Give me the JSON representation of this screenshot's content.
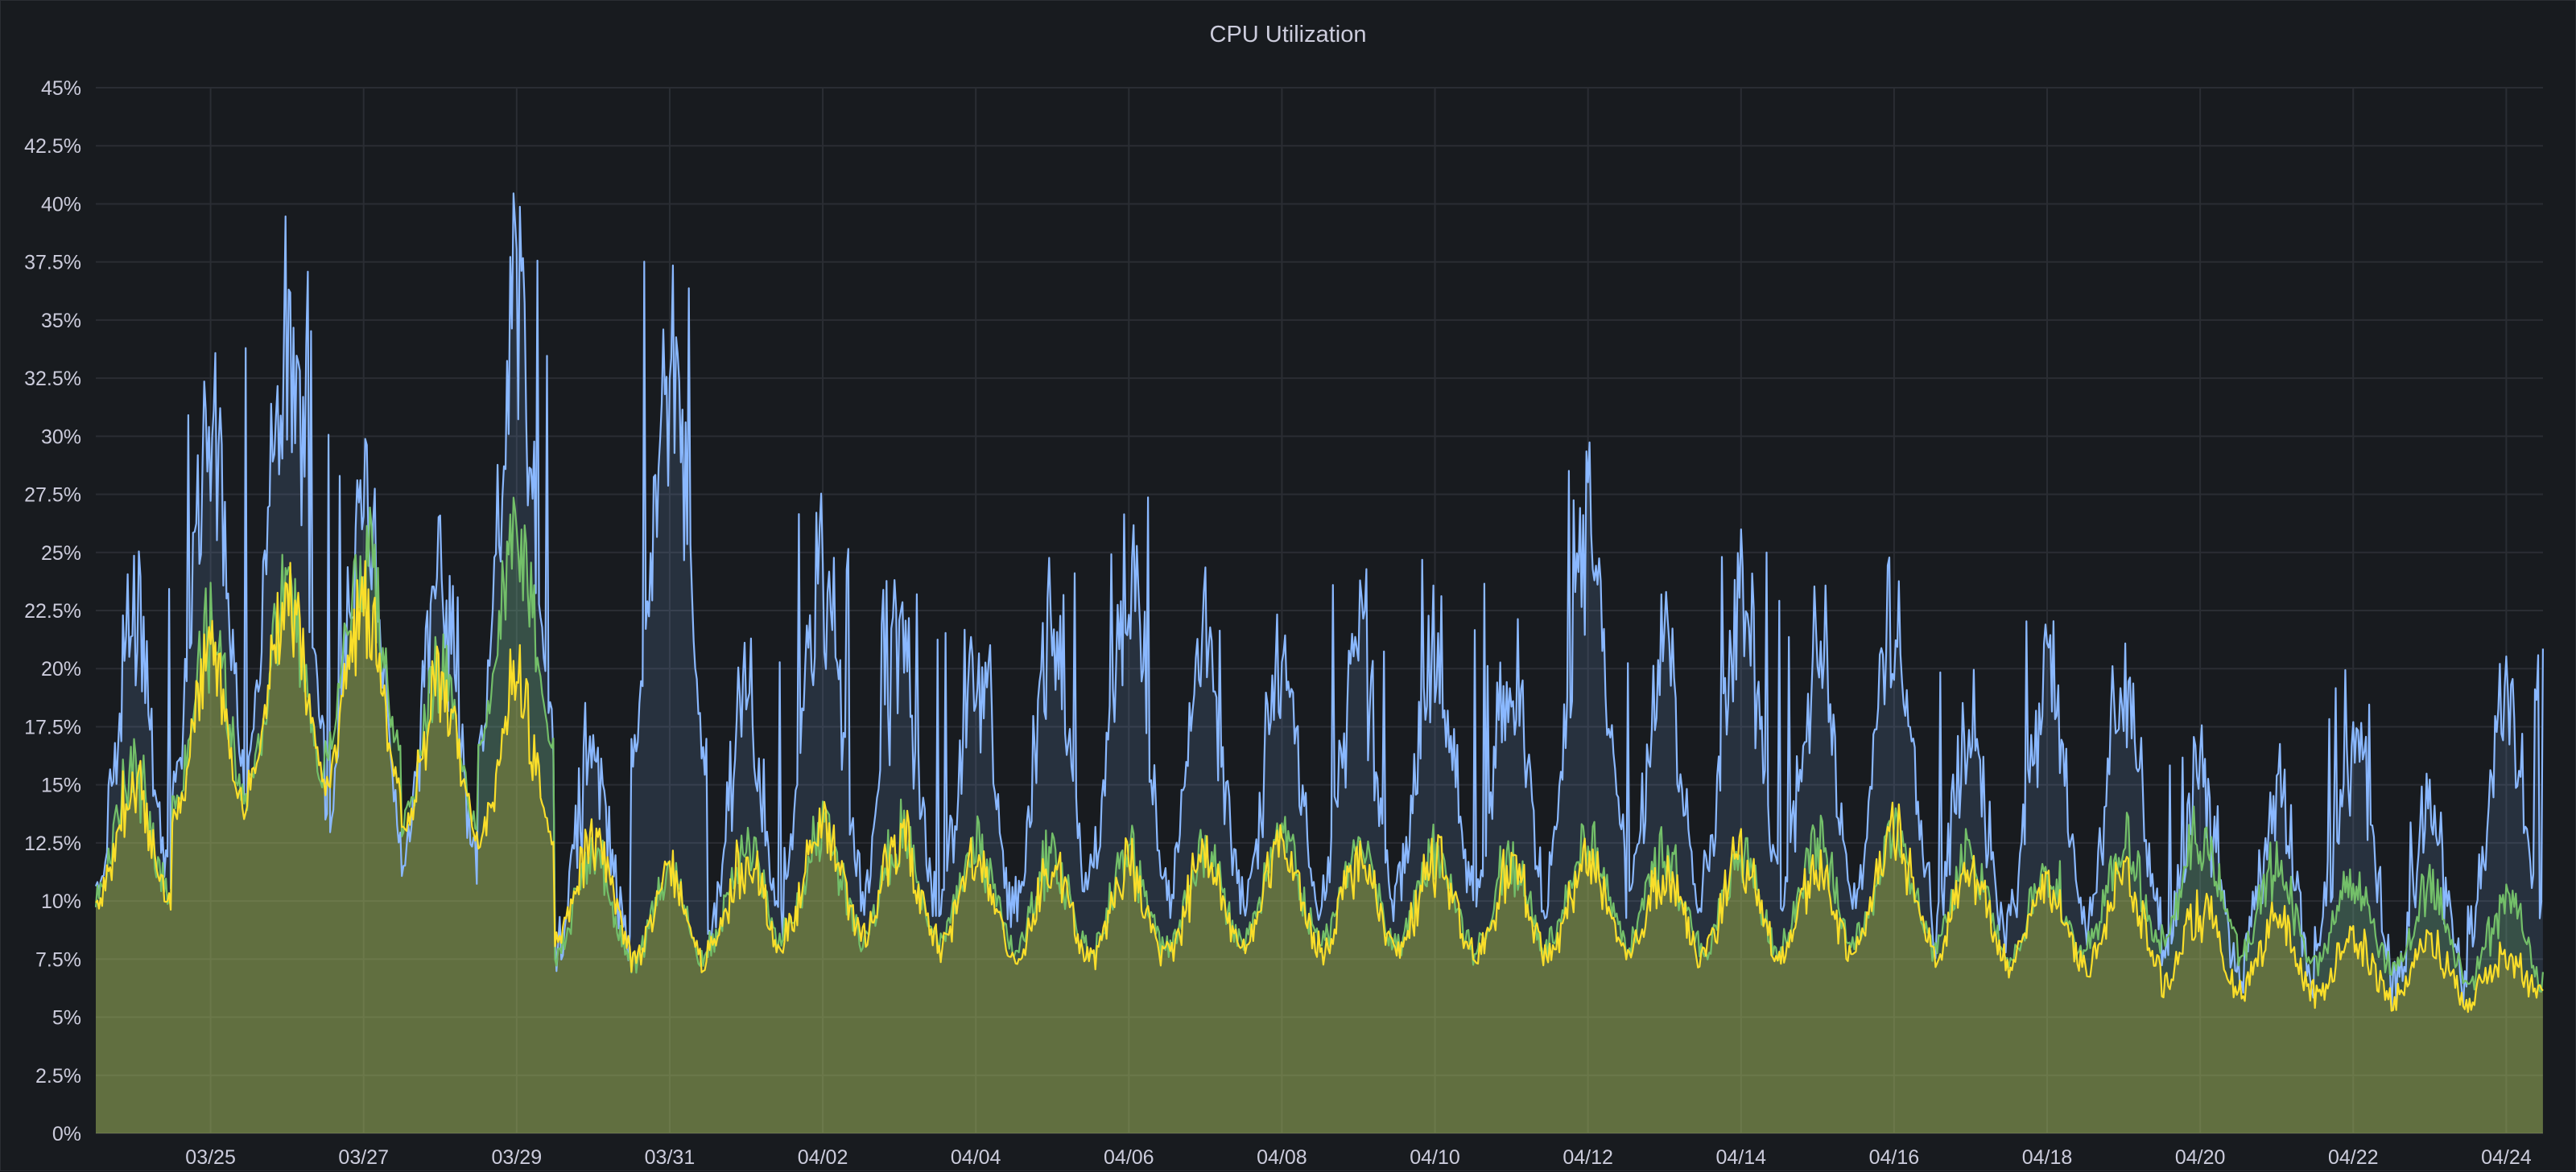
{
  "panel": {
    "title": "CPU Utilization"
  },
  "chart_data": {
    "type": "area",
    "title": "CPU Utilization",
    "xlabel": "",
    "ylabel": "",
    "ylim": [
      0,
      45
    ],
    "y_ticks": [
      "0%",
      "2.5%",
      "5%",
      "7.5%",
      "10%",
      "12.5%",
      "15%",
      "17.5%",
      "20%",
      "22.5%",
      "25%",
      "27.5%",
      "30%",
      "32.5%",
      "35%",
      "37.5%",
      "40%",
      "42.5%",
      "45%"
    ],
    "x_ticks": [
      "03/25",
      "03/27",
      "03/29",
      "03/31",
      "04/02",
      "04/04",
      "04/06",
      "04/08",
      "04/10",
      "04/12",
      "04/14",
      "04/16",
      "04/18",
      "04/20",
      "04/22",
      "04/24"
    ],
    "xlim": [
      "03/24",
      "04/24"
    ],
    "grid": true,
    "legend": "none",
    "colors": {
      "blue": "#8ab8ff",
      "green": "#73bf69",
      "yellow": "#fade2a"
    },
    "series": [
      {
        "color": "#8ab8ff",
        "x": [
          "03/24",
          "03/25",
          "03/26",
          "03/27",
          "03/28",
          "03/29",
          "03/30",
          "03/31",
          "04/01",
          "04/02",
          "04/03",
          "04/04",
          "04/05",
          "04/06",
          "04/07",
          "04/08",
          "04/09",
          "04/10",
          "04/11",
          "04/12",
          "04/13",
          "04/14",
          "04/15",
          "04/16",
          "04/17",
          "04/18",
          "04/19",
          "04/20",
          "04/21",
          "04/22",
          "04/23",
          "04/24"
        ],
        "values": [
          25,
          35,
          40.5,
          31,
          27,
          40,
          19,
          38,
          21,
          27.5,
          24,
          23,
          24,
          27.5,
          24,
          23,
          24,
          25,
          23,
          29.5,
          24,
          26.5,
          24,
          25.5,
          20,
          22.5,
          21.5,
          17.5,
          16,
          19.5,
          15,
          21
        ]
      },
      {
        "color": "#73bf69",
        "x": [
          "03/24",
          "03/25",
          "03/26",
          "03/27",
          "03/28",
          "03/29",
          "03/30",
          "03/31",
          "04/01",
          "04/02",
          "04/03",
          "04/04",
          "04/05",
          "04/06",
          "04/07",
          "04/08",
          "04/09",
          "04/10",
          "04/11",
          "04/12",
          "04/13",
          "04/14",
          "04/15",
          "04/16",
          "04/17",
          "04/18",
          "04/19",
          "04/20",
          "04/21",
          "04/22",
          "04/23",
          "04/24"
        ],
        "values": [
          17,
          23.5,
          25.5,
          27.5,
          22,
          28,
          13,
          12,
          13.5,
          14.5,
          14,
          13.5,
          13,
          13,
          13.5,
          14,
          13.5,
          13.5,
          13,
          14,
          13.5,
          13,
          13.5,
          14,
          13,
          12.5,
          13.5,
          14,
          12.5,
          12,
          11.5,
          11
        ]
      },
      {
        "color": "#fade2a",
        "x": [
          "03/24",
          "03/25",
          "03/26",
          "03/27",
          "03/28",
          "03/29",
          "03/30",
          "03/31",
          "04/01",
          "04/02",
          "04/03",
          "04/04",
          "04/05",
          "04/06",
          "04/07",
          "04/08",
          "04/09",
          "04/10",
          "04/11",
          "04/12",
          "04/13",
          "04/14",
          "04/15",
          "04/16",
          "04/17",
          "04/18",
          "04/19",
          "04/20",
          "04/21",
          "04/22",
          "04/23",
          "04/24"
        ],
        "values": [
          16.5,
          22.5,
          25.5,
          25,
          21.5,
          21,
          14,
          12,
          13,
          14.5,
          14,
          13,
          12.5,
          12.5,
          13,
          13.5,
          13,
          13,
          12.5,
          13,
          12.5,
          13,
          12.5,
          14,
          12.5,
          12,
          12,
          10.5,
          10,
          9.5,
          9,
          8.5
        ]
      }
    ]
  }
}
